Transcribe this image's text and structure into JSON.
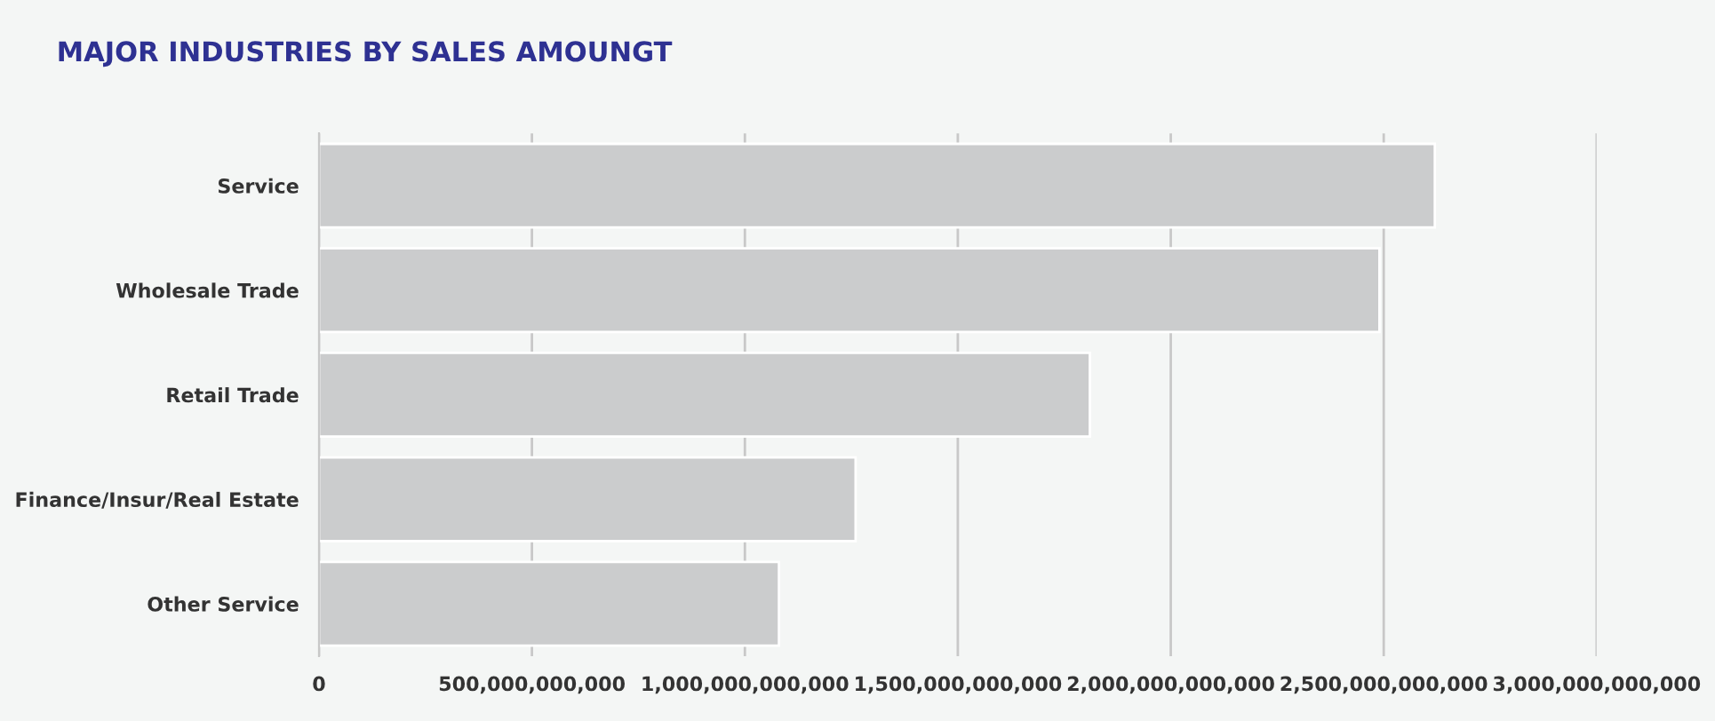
{
  "chart_data": {
    "type": "bar",
    "orientation": "horizontal",
    "title": "MAJOR INDUSTRIES BY SALES AMOUNGT",
    "categories": [
      "Service",
      "Wholesale Trade",
      "Retail Trade",
      "Finance/Insur/Real Estate",
      "Other Service"
    ],
    "values": [
      2620000000000,
      2490000000000,
      1810000000000,
      1260000000000,
      1080000000000
    ],
    "color": "#cbcccd",
    "xlim": [
      0,
      3000000000000
    ],
    "xticks": [
      {
        "value": 0,
        "label": "0"
      },
      {
        "value": 500000000000,
        "label": "500,000,000,000"
      },
      {
        "value": 1000000000000,
        "label": "1,000,000,000,000"
      },
      {
        "value": 1500000000000,
        "label": "1,500,000,000,000"
      },
      {
        "value": 2000000000000,
        "label": "2,000,000,000,000"
      },
      {
        "value": 2500000000000,
        "label": "2,500,000,000,000"
      },
      {
        "value": 3000000000000,
        "label": "3,000,000,000,000"
      }
    ],
    "grid": "x",
    "legend": false
  }
}
